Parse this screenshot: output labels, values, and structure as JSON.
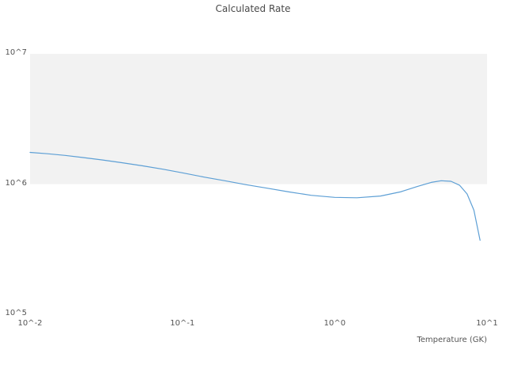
{
  "chart_data": {
    "type": "line",
    "title": "Calculated Rate",
    "xlabel": "Temperature (GK)",
    "ylabel": "",
    "xscale": "log",
    "yscale": "log",
    "xlim": [
      0.01,
      10
    ],
    "ylim": [
      100000.0,
      10000000.0
    ],
    "x_tick_labels": [
      "10^-2",
      "10^-1",
      "10^0",
      "10^1"
    ],
    "x_tick_values": [
      0.01,
      0.1,
      1,
      10
    ],
    "y_tick_labels": [
      "10^5",
      "10^6",
      "10^7"
    ],
    "y_tick_values": [
      100000.0,
      1000000.0,
      10000000.0
    ],
    "legend": "none",
    "grid": "off",
    "band": {
      "y_from": 1000000.0,
      "y_to": 10000000.0,
      "color": "#f2f2f2"
    },
    "series": [
      {
        "name": "calculated-rate",
        "color": "#5d9fd5",
        "x": [
          0.01,
          0.013,
          0.017,
          0.022,
          0.03,
          0.04,
          0.055,
          0.075,
          0.1,
          0.14,
          0.19,
          0.26,
          0.36,
          0.5,
          0.7,
          1.0,
          1.4,
          2.0,
          2.7,
          3.5,
          4.3,
          5.0,
          5.8,
          6.6,
          7.4,
          8.2,
          9.0
        ],
        "y": [
          1750000.0,
          1710000.0,
          1660000.0,
          1600000.0,
          1530000.0,
          1460000.0,
          1380000.0,
          1300000.0,
          1220000.0,
          1130000.0,
          1060000.0,
          990000.0,
          930000.0,
          870000.0,
          820000.0,
          790000.0,
          785000.0,
          810000.0,
          870000.0,
          960000.0,
          1030000.0,
          1060000.0,
          1050000.0,
          980000.0,
          840000.0,
          630000.0,
          370000.0
        ]
      }
    ]
  }
}
